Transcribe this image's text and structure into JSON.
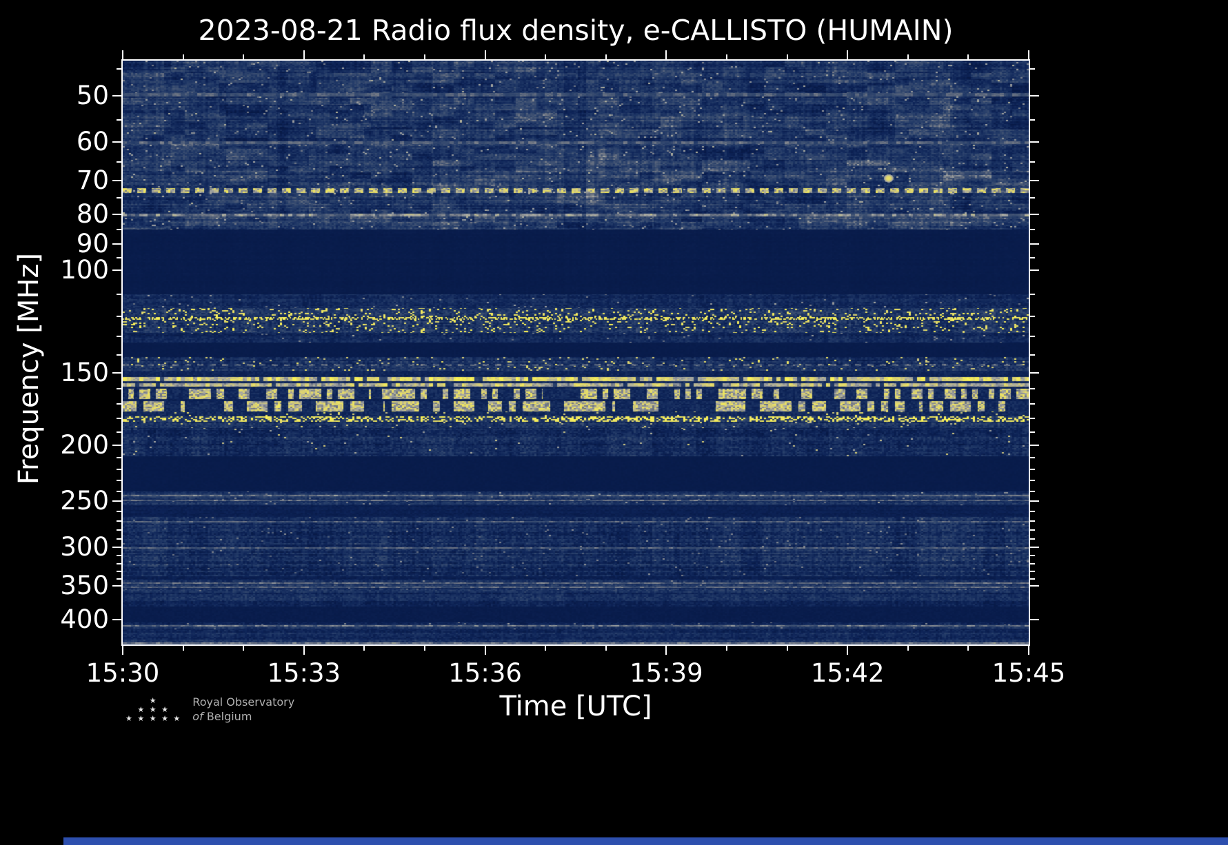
{
  "title": "2023-08-21 Radio flux density, e-CALLISTO (HUMAIN)",
  "chart_data": {
    "type": "heatmap",
    "title": "2023-08-21 Radio flux density, e-CALLISTO (HUMAIN)",
    "xlabel": "Time [UTC]",
    "ylabel": "Frequency [MHz]",
    "x_ticks": [
      "15:30",
      "15:33",
      "15:36",
      "15:39",
      "15:42",
      "15:45"
    ],
    "x_range_minutes": 15,
    "x_minor_step_minutes": 1,
    "y_scale": "log",
    "y_range_mhz": [
      43.5,
      441
    ],
    "y_ticks_mhz": [
      50,
      60,
      70,
      80,
      90,
      100,
      150,
      200,
      250,
      300,
      350,
      400
    ],
    "y_minor_ticks_mhz": [
      45,
      55,
      65,
      75,
      85,
      95,
      110,
      120,
      130,
      140,
      160,
      170,
      180,
      190,
      210,
      220,
      230,
      240,
      260,
      270,
      280,
      290,
      310,
      320,
      330,
      340,
      360,
      370,
      380,
      390,
      410,
      420,
      430,
      440
    ],
    "legend": "none",
    "grid": false,
    "colormap_stops": [
      [
        0.0,
        7,
        25,
        70
      ],
      [
        0.18,
        14,
        36,
        88
      ],
      [
        0.35,
        34,
        58,
        104
      ],
      [
        0.52,
        66,
        84,
        116
      ],
      [
        0.64,
        116,
        122,
        134
      ],
      [
        0.74,
        165,
        167,
        164
      ],
      [
        0.84,
        216,
        206,
        118
      ],
      [
        1.0,
        252,
        244,
        84
      ]
    ],
    "bands": [
      {
        "f1": 43.5,
        "f2": 85,
        "kind": "noise",
        "base": 0.3,
        "amp": 0.1,
        "streak": 0.09,
        "row": 0.09,
        "speck": 0.02,
        "sv": 0.62,
        "cloud": 0.2
      },
      {
        "f1": 85,
        "f2": 110,
        "kind": "noise",
        "base": 0.06,
        "amp": 0.02,
        "streak": 0.01,
        "row": 0.01
      },
      {
        "f1": 110,
        "f2": 116,
        "kind": "noise",
        "base": 0.22,
        "amp": 0.1,
        "streak": 0.07,
        "row": 0.05,
        "speck": 0.01,
        "sv": 0.6
      },
      {
        "f1": 116,
        "f2": 128,
        "kind": "noise",
        "base": 0.3,
        "amp": 0.13,
        "streak": 0.09,
        "row": 0.05,
        "speck": 0.1,
        "sv": 0.86
      },
      {
        "f1": 128,
        "f2": 133,
        "kind": "noise",
        "base": 0.21,
        "amp": 0.1,
        "streak": 0.07,
        "row": 0.05,
        "speck": 0.01,
        "sv": 0.6
      },
      {
        "f1": 133,
        "f2": 141,
        "kind": "noise",
        "base": 0.06,
        "amp": 0.02
      },
      {
        "f1": 141,
        "f2": 149,
        "kind": "noise",
        "base": 0.27,
        "amp": 0.12,
        "streak": 0.08,
        "row": 0.08,
        "speck": 0.05,
        "sv": 0.8
      },
      {
        "f1": 149,
        "f2": 152.5,
        "kind": "noise",
        "base": 0.16,
        "amp": 0.08,
        "streak": 0.05,
        "row": 0.04
      },
      {
        "f1": 152.5,
        "f2": 155,
        "kind": "line",
        "base": 0.9,
        "amp": 0.12
      },
      {
        "f1": 155,
        "f2": 156.5,
        "kind": "noise",
        "base": 0.24,
        "amp": 0.1,
        "streak": 0.06
      },
      {
        "f1": 156.5,
        "f2": 158.5,
        "kind": "line",
        "base": 0.82,
        "amp": 0.14
      },
      {
        "f1": 158.5,
        "f2": 160,
        "kind": "noise",
        "base": 0.2,
        "amp": 0.09
      },
      {
        "f1": 160,
        "f2": 166.5,
        "kind": "blocks",
        "base": 0.22,
        "amp": 0.1,
        "p": 0.52,
        "on": 0.95,
        "bw": 8
      },
      {
        "f1": 166.5,
        "f2": 168,
        "kind": "noise",
        "base": 0.15,
        "amp": 0.07
      },
      {
        "f1": 168,
        "f2": 175,
        "kind": "blocks",
        "base": 0.22,
        "amp": 0.1,
        "p": 0.58,
        "on": 0.96,
        "bw": 10
      },
      {
        "f1": 175,
        "f2": 178.5,
        "kind": "noise",
        "base": 0.22,
        "amp": 0.1,
        "speck": 0.03,
        "sv": 0.8
      },
      {
        "f1": 178.5,
        "f2": 182.5,
        "kind": "noise",
        "base": 0.34,
        "amp": 0.12,
        "speck": 0.45,
        "sv": 0.88
      },
      {
        "f1": 182.5,
        "f2": 187,
        "kind": "noise",
        "base": 0.27,
        "amp": 0.12,
        "streak": 0.08,
        "row": 0.07,
        "speck": 0.02,
        "sv": 0.75
      },
      {
        "f1": 187,
        "f2": 209,
        "kind": "noise",
        "base": 0.24,
        "amp": 0.12,
        "streak": 0.09,
        "row": 0.1,
        "speck": 0.008,
        "sv": 0.7
      },
      {
        "f1": 209,
        "f2": 240,
        "kind": "noise",
        "base": 0.06,
        "amp": 0.02
      },
      {
        "f1": 240,
        "f2": 254,
        "kind": "noise",
        "base": 0.26,
        "amp": 0.1,
        "streak": 0.07,
        "row": 0.12,
        "speck": 0.01,
        "sv": 0.6
      },
      {
        "f1": 254,
        "f2": 266,
        "kind": "noise",
        "base": 0.12,
        "amp": 0.06,
        "row": 0.04
      },
      {
        "f1": 266,
        "f2": 336,
        "kind": "noise",
        "base": 0.25,
        "amp": 0.12,
        "streak": 0.09,
        "row": 0.1,
        "speck": 0.012,
        "sv": 0.55
      },
      {
        "f1": 336,
        "f2": 342,
        "kind": "noise",
        "base": 0.14,
        "amp": 0.07,
        "row": 0.04
      },
      {
        "f1": 342,
        "f2": 357,
        "kind": "noise",
        "base": 0.27,
        "amp": 0.11,
        "streak": 0.07,
        "row": 0.12,
        "speck": 0.01,
        "sv": 0.55
      },
      {
        "f1": 357,
        "f2": 379,
        "kind": "noise",
        "base": 0.22,
        "amp": 0.1,
        "streak": 0.07,
        "row": 0.08
      },
      {
        "f1": 379,
        "f2": 404,
        "kind": "noise",
        "base": 0.07,
        "amp": 0.03
      },
      {
        "f1": 404,
        "f2": 415,
        "kind": "noise",
        "base": 0.26,
        "amp": 0.1,
        "streak": 0.07,
        "row": 0.1,
        "speck": 0.01,
        "sv": 0.6
      },
      {
        "f1": 415,
        "f2": 433,
        "kind": "noise",
        "base": 0.21,
        "amp": 0.1,
        "streak": 0.06,
        "row": 0.08
      },
      {
        "f1": 433,
        "f2": 441,
        "kind": "noise",
        "base": 0.33,
        "amp": 0.1,
        "streak": 0.07,
        "row": 0.09
      }
    ],
    "rfi_lines": [
      {
        "f": 49.8,
        "df": 0.6,
        "kind": "solid",
        "v": 0.5,
        "flick": 0.5
      },
      {
        "f": 60.2,
        "df": 0.6,
        "kind": "solid",
        "v": 0.52,
        "flick": 0.5
      },
      {
        "f": 72.8,
        "df": 1.4,
        "kind": "dash",
        "v": 1.0,
        "on": 13,
        "off": 8
      },
      {
        "f": 80.3,
        "df": 0.8,
        "kind": "solid",
        "v": 0.62,
        "flick": 0.5
      },
      {
        "f": 121,
        "df": 1.2,
        "kind": "speck",
        "v": 0.9,
        "p": 0.45
      },
      {
        "f": 145.5,
        "df": 0.9,
        "kind": "dash",
        "v": 0.68,
        "on": 9,
        "off": 9
      },
      {
        "f": 244,
        "df": 0.7,
        "kind": "solid",
        "v": 0.6,
        "flick": 0.4
      },
      {
        "f": 249,
        "df": 0.7,
        "kind": "solid",
        "v": 0.57,
        "flick": 0.4
      },
      {
        "f": 271,
        "df": 0.7,
        "kind": "solid",
        "v": 0.54,
        "flick": 0.4
      },
      {
        "f": 300,
        "df": 0.8,
        "kind": "solid",
        "v": 0.55,
        "flick": 0.4
      },
      {
        "f": 345,
        "df": 0.8,
        "kind": "solid",
        "v": 0.58,
        "flick": 0.4
      },
      {
        "f": 351,
        "df": 0.8,
        "kind": "solid",
        "v": 0.56,
        "flick": 0.4
      },
      {
        "f": 409,
        "df": 0.9,
        "kind": "solid",
        "v": 0.6,
        "flick": 0.45
      },
      {
        "f": 437.5,
        "df": 1.0,
        "kind": "solid",
        "v": 0.65,
        "flick": 0.3
      },
      {
        "t": 0.845,
        "f": 69.3,
        "kind": "blob",
        "v": 0.92,
        "w": 7,
        "h": 6
      }
    ]
  },
  "logo": {
    "stars_rows": [
      "★",
      "★ ★ ★",
      "★ ★ ★ ★ ★"
    ],
    "line1": "Royal Observatory",
    "line2_italic": "of",
    "line2_rest": "Belgium"
  },
  "colors": {
    "background": "#000000",
    "frame": "#ffffff",
    "text": "#ffffff",
    "logo_text": "#b0b0b0",
    "bottom_strip": "#2d4fae",
    "dark_navy": "#091c48",
    "rfi_yellow": "#f7f054"
  }
}
